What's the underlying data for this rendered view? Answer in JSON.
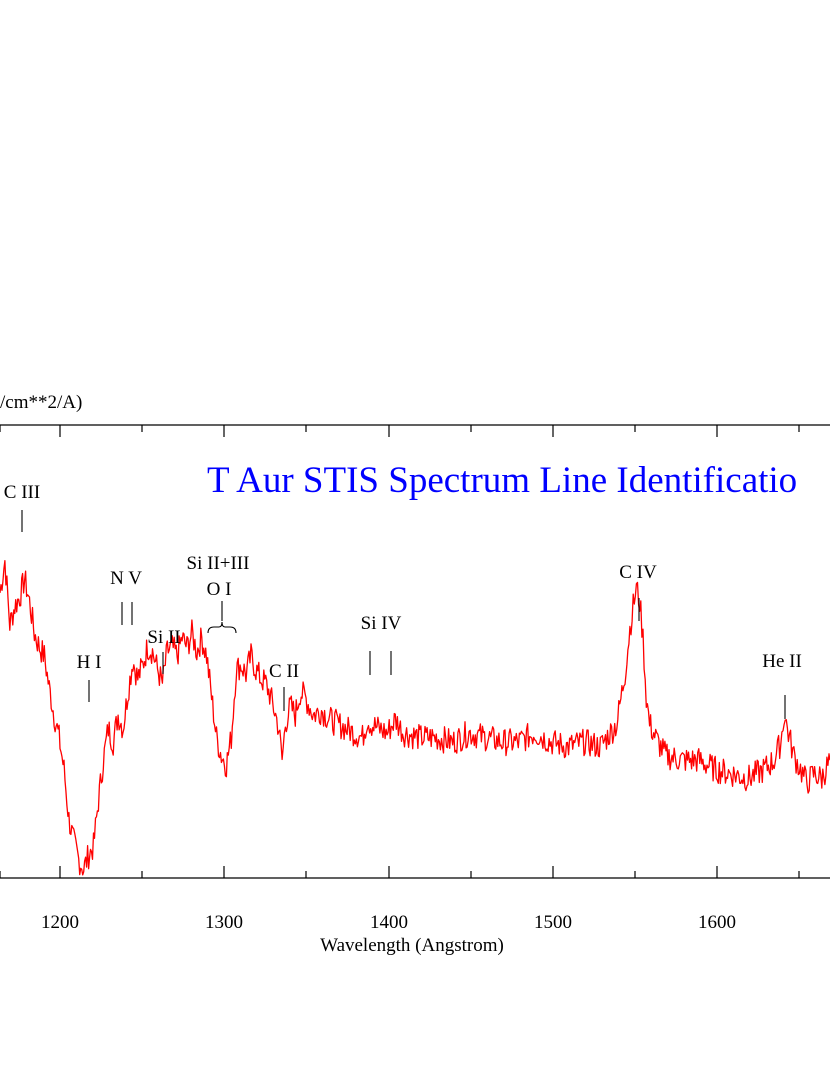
{
  "chart_data": {
    "type": "line",
    "title": "T Aur STIS Spectrum Line Identificatio",
    "xlabel": "Wavelength (Angstrom)",
    "ylabel": "/cm**2/A)",
    "xlim": [
      1164,
      1670
    ],
    "ylim": [
      0,
      1
    ],
    "grid": false,
    "colors": {
      "series": "#ff0000",
      "title": "#0000ff",
      "axes": "#000000"
    },
    "x_ticks": [
      1200,
      1300,
      1400,
      1500,
      1600
    ],
    "x_tick_labels": [
      "1200",
      "1300",
      "1400",
      "1500",
      "1600"
    ],
    "series": [
      {
        "color": "#ff0000",
        "x": [
          1164,
          1167,
          1170,
          1173,
          1176,
          1179,
          1182,
          1185,
          1188,
          1191,
          1194,
          1197,
          1200,
          1203,
          1206,
          1209,
          1212,
          1215,
          1218,
          1221,
          1224,
          1227,
          1230,
          1233,
          1236,
          1239,
          1242,
          1245,
          1248,
          1251,
          1254,
          1257,
          1260,
          1263,
          1266,
          1269,
          1272,
          1275,
          1278,
          1281,
          1284,
          1287,
          1290,
          1293,
          1296,
          1299,
          1302,
          1305,
          1308,
          1311,
          1314,
          1317,
          1320,
          1323,
          1326,
          1329,
          1332,
          1334,
          1336,
          1338,
          1341,
          1344,
          1347,
          1350,
          1355,
          1360,
          1365,
          1370,
          1375,
          1380,
          1385,
          1388,
          1390,
          1395,
          1400,
          1405,
          1410,
          1420,
          1430,
          1440,
          1450,
          1460,
          1470,
          1480,
          1490,
          1500,
          1510,
          1520,
          1530,
          1540,
          1545,
          1548,
          1550,
          1552,
          1554,
          1556,
          1558,
          1560,
          1565,
          1570,
          1580,
          1590,
          1600,
          1610,
          1620,
          1630,
          1636,
          1640,
          1642,
          1644,
          1646,
          1648,
          1652,
          1656,
          1660,
          1665,
          1670
        ],
        "y": [
          0.63,
          0.7,
          0.56,
          0.6,
          0.62,
          0.66,
          0.61,
          0.54,
          0.51,
          0.49,
          0.42,
          0.36,
          0.31,
          0.24,
          0.13,
          0.08,
          0.04,
          0.02,
          0.05,
          0.07,
          0.17,
          0.26,
          0.33,
          0.3,
          0.36,
          0.33,
          0.41,
          0.48,
          0.44,
          0.47,
          0.51,
          0.5,
          0.46,
          0.43,
          0.5,
          0.51,
          0.49,
          0.53,
          0.51,
          0.54,
          0.5,
          0.53,
          0.49,
          0.4,
          0.31,
          0.27,
          0.25,
          0.31,
          0.46,
          0.47,
          0.45,
          0.49,
          0.46,
          0.44,
          0.43,
          0.4,
          0.36,
          0.33,
          0.26,
          0.34,
          0.38,
          0.36,
          0.41,
          0.4,
          0.36,
          0.37,
          0.35,
          0.34,
          0.33,
          0.32,
          0.31,
          0.35,
          0.34,
          0.33,
          0.32,
          0.35,
          0.32,
          0.31,
          0.31,
          0.3,
          0.32,
          0.31,
          0.3,
          0.3,
          0.32,
          0.3,
          0.29,
          0.3,
          0.29,
          0.34,
          0.45,
          0.55,
          0.6,
          0.64,
          0.61,
          0.53,
          0.4,
          0.34,
          0.3,
          0.27,
          0.26,
          0.26,
          0.24,
          0.23,
          0.22,
          0.24,
          0.26,
          0.3,
          0.36,
          0.33,
          0.3,
          0.27,
          0.24,
          0.21,
          0.23,
          0.22,
          0.26
        ]
      }
    ],
    "annotations": [
      {
        "label": "C III",
        "x": 1176
      },
      {
        "label": "H I",
        "x": 1216
      },
      {
        "label": "N V",
        "x": 1240
      },
      {
        "label": "Si II",
        "x": 1262
      },
      {
        "label": "Si II+III",
        "x": 1298
      },
      {
        "label": "O I",
        "x": 1298
      },
      {
        "label": "C II",
        "x": 1335
      },
      {
        "label": "Si IV",
        "x": 1395
      },
      {
        "label": "C IV",
        "x": 1550
      },
      {
        "label": "He II",
        "x": 1640
      }
    ]
  }
}
